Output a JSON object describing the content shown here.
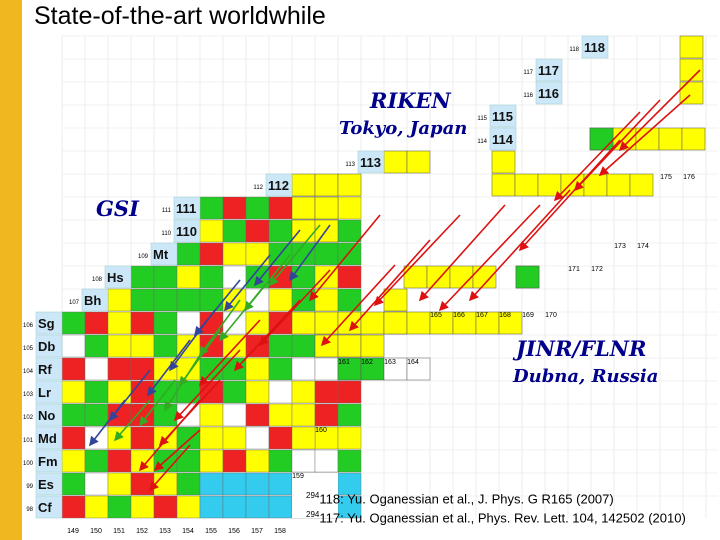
{
  "slide": {
    "title": "State-of-the-art worldwhile"
  },
  "labs": {
    "riken_name": "RIKEN",
    "riken_location": "Tokyo, Japan",
    "gsi_name": "GSI",
    "jinr_name": "JINR/FLNR",
    "jinr_location": "Dubna, Russia"
  },
  "element_rows": [
    {
      "z": "118",
      "symbol": "118"
    },
    {
      "z": "117",
      "symbol": "117"
    },
    {
      "z": "116",
      "symbol": "116"
    },
    {
      "z": "115",
      "symbol": "115"
    },
    {
      "z": "114",
      "symbol": "114"
    },
    {
      "z": "113",
      "symbol": "113"
    },
    {
      "z": "112",
      "symbol": "112"
    },
    {
      "z": "111",
      "symbol": "111"
    },
    {
      "z": "110",
      "symbol": "110"
    },
    {
      "z": "109",
      "symbol": "Mt"
    },
    {
      "z": "108",
      "symbol": "Hs"
    },
    {
      "z": "107",
      "symbol": "Bh"
    },
    {
      "z": "106",
      "symbol": "Sg"
    },
    {
      "z": "105",
      "symbol": "Db"
    },
    {
      "z": "104",
      "symbol": "Rf"
    },
    {
      "z": "103",
      "symbol": "Lr"
    },
    {
      "z": "102",
      "symbol": "No"
    },
    {
      "z": "101",
      "symbol": "Md"
    },
    {
      "z": "100",
      "symbol": "Fm"
    },
    {
      "z": "99",
      "symbol": "Es"
    },
    {
      "z": "98",
      "symbol": "Cf"
    }
  ],
  "neutron_numbers": {
    "bottom_row": [
      "149",
      "150",
      "151",
      "152",
      "153",
      "154",
      "155",
      "156",
      "157",
      "158"
    ],
    "row_161": [
      "161",
      "162",
      "163",
      "164"
    ],
    "row_165": [
      "165",
      "166",
      "167",
      "168",
      "169",
      "170"
    ],
    "row_171": [
      "171",
      "172"
    ],
    "row_173": [
      "173",
      "174"
    ],
    "row_175": [
      "175",
      "176"
    ],
    "other": [
      "159",
      "160"
    ]
  },
  "references": [
    {
      "mass": "294",
      "text": "118: Yu. Oganessian et al., J. Phys. G R165 (2007)"
    },
    {
      "mass": "294",
      "text": "117: Yu. Oganessian et al., Phys. Rev. Lett. 104, 142502 (2010)"
    }
  ],
  "colors": {
    "accent_bar": "#f0b71e",
    "yellow": "#ffff00",
    "green": "#22cc22",
    "red": "#ee2222",
    "blue_label": "#cce8f8",
    "arrow_red": "#dd1111",
    "arrow_blue": "#334499",
    "arrow_green": "#33aa22",
    "lab_text": "#00008a"
  }
}
